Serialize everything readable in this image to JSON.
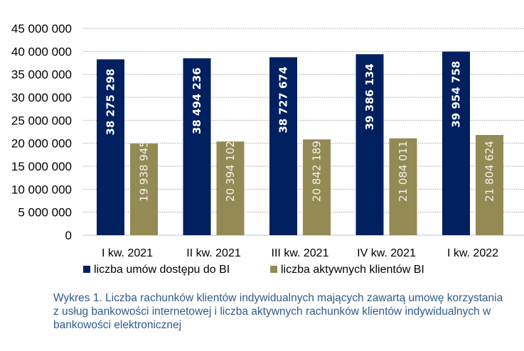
{
  "chart_data": {
    "type": "bar",
    "categories": [
      "I kw. 2021",
      "II kw. 2021",
      "III kw. 2021",
      "IV kw. 2021",
      "I kw. 2022"
    ],
    "series": [
      {
        "name": "liczba umów dostępu do BI",
        "values": [
          38275298,
          38494236,
          38727674,
          39386134,
          39954758
        ],
        "labels": [
          "38 275 298",
          "38 494 236",
          "38 727 674",
          "39 386 134",
          "39 954 758"
        ],
        "color": "#002060",
        "label_color": "#ffffff"
      },
      {
        "name": "liczba aktywnych klientów BI",
        "values": [
          19938945,
          20394102,
          20842189,
          21084011,
          21804624
        ],
        "labels": [
          "19 938 945",
          "20 394 102",
          "20 842 189",
          "21 084 011",
          "21 804 624"
        ],
        "color": "#948a54",
        "label_color": "#f2f2f2"
      }
    ],
    "ylim": [
      0,
      45000000
    ],
    "yticks": [
      "0",
      "5 000 000",
      "10 000 000",
      "15 000 000",
      "20 000 000",
      "25 000 000",
      "30 000 000",
      "35 000 000",
      "40 000 000",
      "45 000 000"
    ],
    "grid": true,
    "legend": "bottom"
  },
  "caption": "Wykres 1. Liczba rachunków klientów indywidualnych mających zawartą umowę korzystania z usług bankowości internetowej  i liczba aktywnych rachunków klientów indywidualnych w bankowości elektronicznej"
}
